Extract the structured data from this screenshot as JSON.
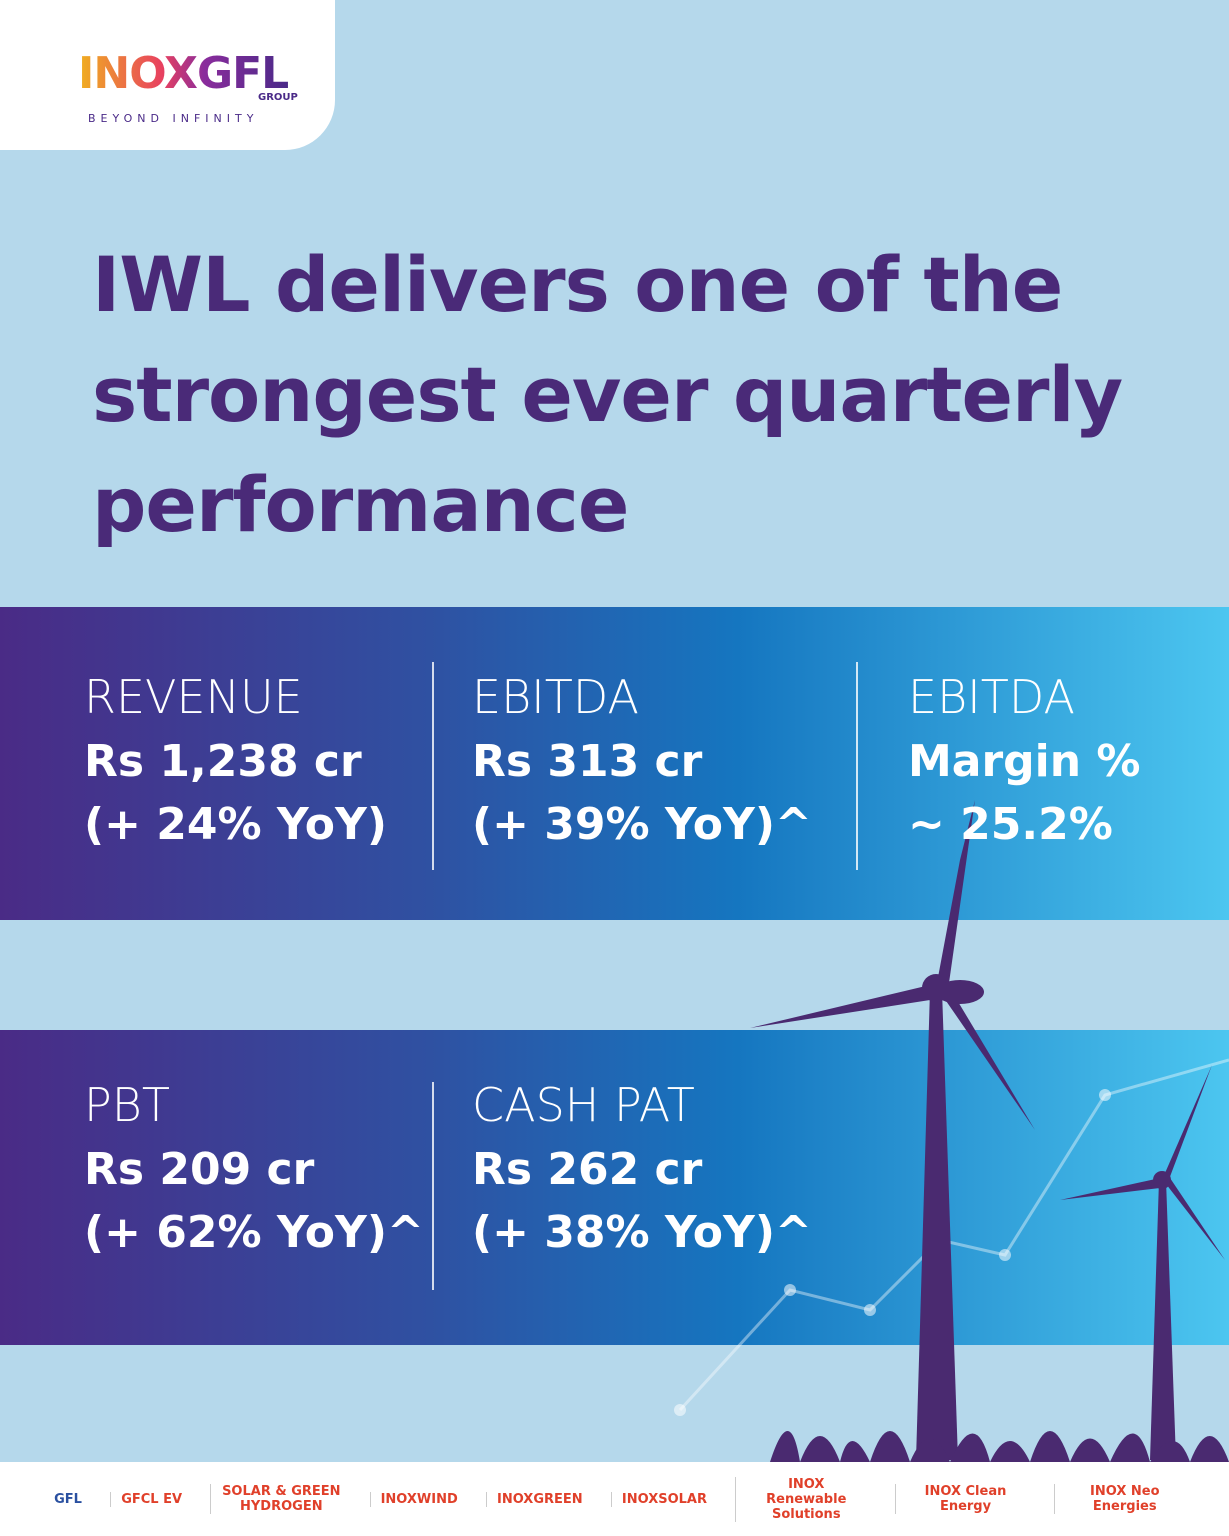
{
  "logo": {
    "brand": "INOXGFL",
    "group": "GROUP",
    "tagline": "BEYOND INFINITY"
  },
  "headline": [
    "IWL delivers one of the",
    "strongest ever quarterly",
    "performance"
  ],
  "metrics_top": [
    {
      "label": "REVENUE",
      "value": "Rs 1,238 cr",
      "change": "(+ 24% YoY)"
    },
    {
      "label": "EBITDA",
      "value": "Rs 313 cr",
      "change": "(+ 39% YoY)^"
    },
    {
      "label": "EBITDA",
      "value": "Margin %",
      "change": "~ 25.2%"
    }
  ],
  "metrics_bottom": [
    {
      "label": "PBT",
      "value": "Rs 209 cr",
      "change": "(+ 62% YoY)^"
    },
    {
      "label": "CASH PAT",
      "value": "Rs 262 cr",
      "change": "(+ 38% YoY)^"
    }
  ],
  "footer_brands": [
    "GFL",
    "GFCL EV",
    "SOLAR & GREEN HYDROGEN",
    "INOXWIND",
    "INOXGREEN",
    "INOXSOLAR",
    "INOX Renewable Solutions",
    "INOX Clean Energy",
    "INOX Neo Energies"
  ]
}
